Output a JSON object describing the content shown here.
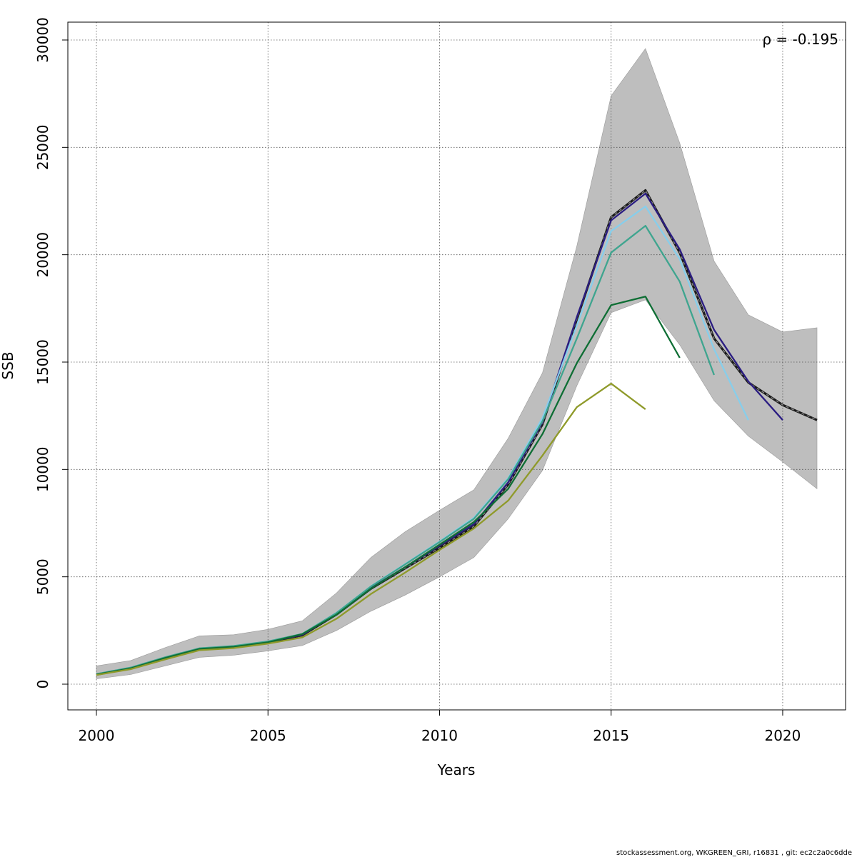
{
  "chart_data": {
    "type": "line",
    "title": "",
    "xlabel": "Years",
    "ylabel": "SSB",
    "xlim": [
      2000,
      2021
    ],
    "ylim": [
      0,
      30000
    ],
    "x_ticks": [
      2000,
      2005,
      2010,
      2015,
      2020
    ],
    "y_ticks": [
      0,
      5000,
      10000,
      15000,
      20000,
      25000,
      30000
    ],
    "grid": true,
    "annotation": "ρ = -0.195",
    "confidence_band": {
      "x": [
        2000,
        2001,
        2002,
        2003,
        2004,
        2005,
        2006,
        2007,
        2008,
        2009,
        2010,
        2011,
        2012,
        2013,
        2014,
        2015,
        2016,
        2017,
        2018,
        2019,
        2020,
        2021
      ],
      "upper": [
        850,
        1100,
        1700,
        2250,
        2300,
        2550,
        2950,
        4250,
        5900,
        7100,
        8100,
        9050,
        11450,
        14500,
        20400,
        27400,
        29600,
        25200,
        19700,
        17200,
        16400,
        16600
      ],
      "lower": [
        250,
        450,
        850,
        1250,
        1350,
        1550,
        1800,
        2500,
        3400,
        4150,
        5000,
        5900,
        7700,
        9950,
        13900,
        17300,
        17900,
        15800,
        13200,
        11550,
        10350,
        9100
      ],
      "color": "#bebebe"
    },
    "series": [
      {
        "color": "#1a1a1a",
        "dashed": true,
        "x": [
          2000,
          2001,
          2002,
          2003,
          2004,
          2005,
          2006,
          2007,
          2008,
          2009,
          2010,
          2011,
          2012,
          2013,
          2014,
          2015,
          2016,
          2017,
          2018,
          2019,
          2020,
          2021
        ],
        "values": [
          450,
          750,
          1230,
          1650,
          1750,
          1950,
          2280,
          3250,
          4450,
          5400,
          6350,
          7350,
          9300,
          12100,
          17000,
          21750,
          23000,
          20100,
          16100,
          14050,
          13000,
          12300
        ]
      },
      {
        "color": "#2b1d82",
        "dashed": false,
        "x": [
          2000,
          2001,
          2002,
          2003,
          2004,
          2005,
          2006,
          2007,
          2008,
          2009,
          2010,
          2011,
          2012,
          2013,
          2014,
          2015,
          2016,
          2017,
          2018,
          2019,
          2020
        ],
        "values": [
          460,
          760,
          1240,
          1660,
          1760,
          1960,
          2300,
          3280,
          4480,
          5450,
          6450,
          7450,
          9400,
          12200,
          17100,
          21600,
          22850,
          20250,
          16500,
          14100,
          12300
        ]
      },
      {
        "color": "#87ceeb",
        "dashed": false,
        "x": [
          2000,
          2001,
          2002,
          2003,
          2004,
          2005,
          2006,
          2007,
          2008,
          2009,
          2010,
          2011,
          2012,
          2013,
          2014,
          2015,
          2016,
          2017,
          2018,
          2019
        ],
        "values": [
          470,
          770,
          1250,
          1670,
          1780,
          1990,
          2340,
          3330,
          4560,
          5600,
          6650,
          7750,
          9600,
          12400,
          16700,
          21100,
          22250,
          19800,
          15600,
          12300
        ]
      },
      {
        "color": "#3fa58f",
        "dashed": false,
        "x": [
          2000,
          2001,
          2002,
          2003,
          2004,
          2005,
          2006,
          2007,
          2008,
          2009,
          2010,
          2011,
          2012,
          2013,
          2014,
          2015,
          2016,
          2017,
          2018
        ],
        "values": [
          470,
          770,
          1250,
          1670,
          1780,
          1990,
          2340,
          3320,
          4550,
          5580,
          6620,
          7700,
          9550,
          12250,
          16100,
          20100,
          21350,
          18750,
          14400
        ]
      },
      {
        "color": "#0e6e34",
        "dashed": false,
        "x": [
          2000,
          2001,
          2002,
          2003,
          2004,
          2005,
          2006,
          2007,
          2008,
          2009,
          2010,
          2011,
          2012,
          2013,
          2014,
          2015,
          2016,
          2017
        ],
        "values": [
          450,
          740,
          1220,
          1640,
          1740,
          1950,
          2330,
          3240,
          4450,
          5450,
          6500,
          7550,
          9100,
          11650,
          14950,
          17650,
          18050,
          15200
        ]
      },
      {
        "color": "#8f9a2a",
        "dashed": false,
        "x": [
          2000,
          2001,
          2002,
          2003,
          2004,
          2005,
          2006,
          2007,
          2008,
          2009,
          2010,
          2011,
          2012,
          2013,
          2014,
          2015,
          2016
        ],
        "values": [
          430,
          700,
          1150,
          1580,
          1680,
          1890,
          2180,
          3050,
          4200,
          5200,
          6250,
          7250,
          8550,
          10650,
          12900,
          14000,
          12800
        ]
      }
    ]
  },
  "footer": "stockassessment.org, WKGREEN_GRI, r16831 , git: ec2c2a0c6dde"
}
